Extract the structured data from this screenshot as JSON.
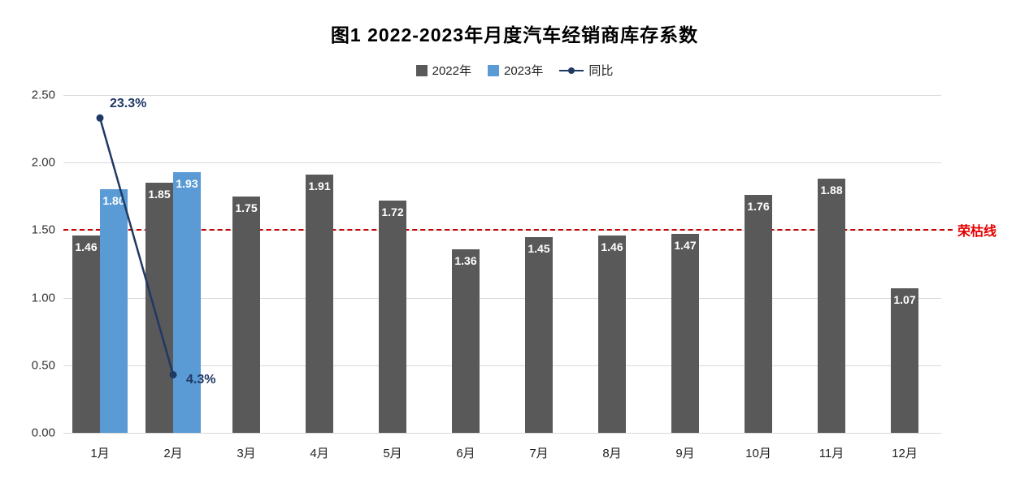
{
  "title": "图1  2022-2023年月度汽车经销商库存系数",
  "reference_label": "荣枯线",
  "chart_data": {
    "type": "bar",
    "title": "图1  2022-2023年月度汽车经销商库存系数",
    "categories": [
      "1月",
      "2月",
      "3月",
      "4月",
      "5月",
      "6月",
      "7月",
      "8月",
      "9月",
      "10月",
      "11月",
      "12月"
    ],
    "series": [
      {
        "name": "2022年",
        "type": "bar",
        "color": "#595959",
        "values": [
          1.46,
          1.85,
          1.75,
          1.91,
          1.72,
          1.36,
          1.45,
          1.46,
          1.47,
          1.76,
          1.88,
          1.07
        ]
      },
      {
        "name": "2023年",
        "type": "bar",
        "color": "#5b9bd5",
        "values": [
          1.8,
          1.93,
          null,
          null,
          null,
          null,
          null,
          null,
          null,
          null,
          null,
          null
        ]
      },
      {
        "name": "同比",
        "type": "line",
        "color": "#1f3864",
        "points": [
          {
            "category": "1月",
            "percent": 23.3,
            "label": "23.3%"
          },
          {
            "category": "2月",
            "percent": 4.3,
            "label": "4.3%"
          }
        ]
      }
    ],
    "ylim": [
      0,
      2.5
    ],
    "yticks": [
      "0.00",
      "0.50",
      "1.00",
      "1.50",
      "2.00",
      "2.50"
    ],
    "grid": true,
    "legend_position": "top",
    "reference_line": {
      "value": 1.5,
      "label": "荣枯线",
      "color": "#c00000",
      "style": "dashed"
    }
  }
}
